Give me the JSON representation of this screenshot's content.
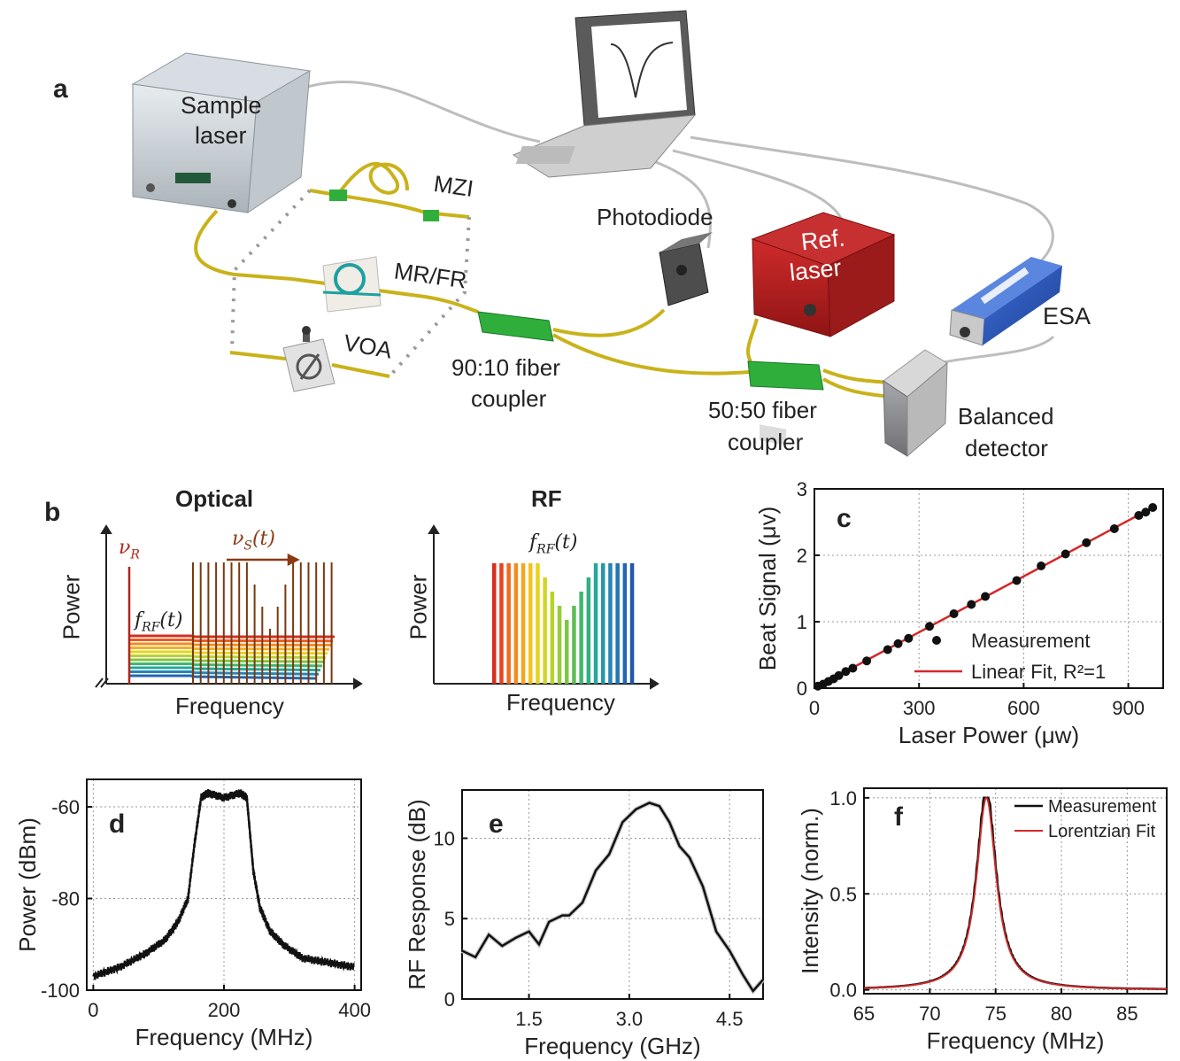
{
  "panel_a": {
    "letter": "a",
    "labels": {
      "sample_laser_1": "Sample",
      "sample_laser_2": "laser",
      "mzi": "MZI",
      "mrfr": "MR/FR",
      "voa": "VOA",
      "photodiode": "Photodiode",
      "ref_laser_1": "Ref.",
      "ref_laser_2": "laser",
      "esa": "ESA",
      "coupler_9010_1": "90:10 fiber",
      "coupler_9010_2": "coupler",
      "coupler_5050_1": "50:50 fiber",
      "coupler_5050_2": "coupler",
      "balanced_1": "Balanced",
      "balanced_2": "detector"
    },
    "colors": {
      "fiber": "#c9b21a",
      "coupler": "#2fae3b",
      "ref_laser": "#b41f1f",
      "esa": "#2b55b8",
      "cable": "#bbbbbb"
    }
  },
  "panel_b": {
    "letter": "b",
    "optical_title": "Optical",
    "rf_title": "RF",
    "ylabel": "Power",
    "xlabel": "Frequency",
    "nu_r": "ν",
    "nu_r_sub": "R",
    "nu_s": "ν",
    "nu_s_sub": "S",
    "nu_s_tail": "(t)",
    "f_rf": "f",
    "f_rf_sub": "RF",
    "f_rf_tail": "(t)"
  },
  "chart_data": [
    {
      "id": "c",
      "letter": "c",
      "type": "scatter",
      "xlabel": "Laser Power (μw)",
      "ylabel": "Beat Signal (μv)",
      "xlim": [
        0,
        1000
      ],
      "ylim": [
        0,
        3
      ],
      "xticks": [
        "0",
        "300",
        "600",
        "900"
      ],
      "yticks": [
        "0",
        "1",
        "2",
        "3"
      ],
      "grid": true,
      "legend_position": "bottom-right",
      "series": [
        {
          "name": "Measurement",
          "x": [
            10,
            25,
            40,
            55,
            70,
            90,
            110,
            150,
            210,
            240,
            270,
            330,
            400,
            450,
            490,
            580,
            650,
            720,
            780,
            860,
            930,
            950,
            970
          ],
          "y": [
            0.03,
            0.06,
            0.1,
            0.14,
            0.19,
            0.25,
            0.3,
            0.41,
            0.58,
            0.67,
            0.75,
            0.93,
            1.12,
            1.26,
            1.38,
            1.62,
            1.84,
            2.02,
            2.19,
            2.4,
            2.6,
            2.65,
            2.72
          ]
        },
        {
          "name": "Linear Fit, R²=1",
          "x": [
            0,
            970
          ],
          "y": [
            0,
            2.72
          ]
        }
      ]
    },
    {
      "id": "d",
      "letter": "d",
      "type": "line",
      "xlabel": "Frequency (MHz)",
      "ylabel": "Power (dBm)",
      "xlim": [
        -10,
        410
      ],
      "ylim": [
        -100,
        -54
      ],
      "xticks": [
        "0",
        "200",
        "400"
      ],
      "yticks": [
        "-60",
        "-80",
        "-100"
      ],
      "grid": true,
      "series": [
        {
          "x": [
            0,
            40,
            80,
            110,
            130,
            145,
            155,
            165,
            175,
            200,
            225,
            235,
            240,
            245,
            255,
            270,
            290,
            320,
            360,
            400
          ],
          "y": [
            -97,
            -95,
            -92,
            -89,
            -85,
            -80,
            -68,
            -58,
            -57,
            -58,
            -57,
            -58,
            -66,
            -74,
            -82,
            -87,
            -90,
            -93,
            -94,
            -95
          ]
        }
      ]
    },
    {
      "id": "e",
      "letter": "e",
      "type": "line",
      "xlabel": "Frequency (GHz)",
      "ylabel": "RF Response (dB)",
      "xlim": [
        0.5,
        5.0
      ],
      "ylim": [
        0,
        13
      ],
      "xticks": [
        "1.5",
        "3.0",
        "4.5"
      ],
      "yticks": [
        "0",
        "5",
        "10"
      ],
      "grid": true,
      "series": [
        {
          "x": [
            0.5,
            0.7,
            0.9,
            1.1,
            1.3,
            1.5,
            1.65,
            1.8,
            2.0,
            2.1,
            2.3,
            2.5,
            2.7,
            2.9,
            3.1,
            3.3,
            3.45,
            3.6,
            3.75,
            3.9,
            4.1,
            4.3,
            4.5,
            4.7,
            4.85,
            5.0
          ],
          "y": [
            3.0,
            2.6,
            4.0,
            3.3,
            3.8,
            4.2,
            3.4,
            4.8,
            5.2,
            5.2,
            6.0,
            8.0,
            9.0,
            11.0,
            11.8,
            12.2,
            12.0,
            11.0,
            9.5,
            8.8,
            7.0,
            4.2,
            3.0,
            1.5,
            0.5,
            1.2
          ]
        }
      ]
    },
    {
      "id": "f",
      "letter": "f",
      "type": "line",
      "xlabel": "Frequency (MHz)",
      "ylabel": "Intensity (norm.)",
      "xlim": [
        65,
        88
      ],
      "ylim": [
        -0.02,
        1.05
      ],
      "xticks": [
        "65",
        "70",
        "75",
        "80",
        "85"
      ],
      "yticks": [
        "0.0",
        "0.5",
        "1.0"
      ],
      "grid": true,
      "legend_position": "top-right",
      "lorentzian": {
        "center": 74.3,
        "hwhm": 0.9
      },
      "series": [
        {
          "name": "Measurement",
          "color": "#111111"
        },
        {
          "name": "Lorentzian Fit",
          "color": "#d62728"
        }
      ]
    }
  ]
}
